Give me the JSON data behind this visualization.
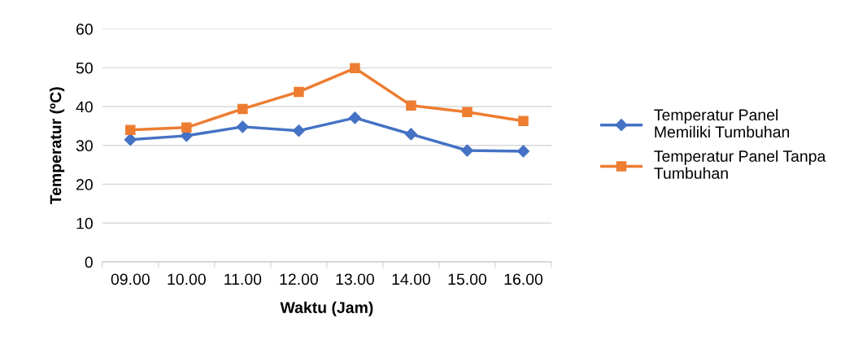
{
  "chart_data": {
    "type": "line",
    "xlabel": "Waktu (Jam)",
    "ylabel": "Temperatur (ºC)",
    "categories": [
      "09.00",
      "10.00",
      "11.00",
      "12.00",
      "13.00",
      "14.00",
      "15.00",
      "16.00"
    ],
    "series": [
      {
        "name": "Temperatur Panel Memiliki Tumbuhan",
        "color": "#4472c4",
        "marker": "diamond",
        "values": [
          31.5,
          32.5,
          34.8,
          33.8,
          37.1,
          32.9,
          28.7,
          28.5
        ]
      },
      {
        "name": "Temperatur Panel Tanpa Tumbuhan",
        "color": "#ed7d31",
        "marker": "square",
        "values": [
          34.0,
          34.6,
          39.4,
          43.8,
          49.9,
          40.3,
          38.6,
          36.3
        ]
      }
    ],
    "ylim": [
      0,
      60
    ],
    "yticks": [
      0,
      10,
      20,
      30,
      40,
      50,
      60
    ],
    "grid": "y",
    "legend": "right",
    "line_style": "solid"
  }
}
